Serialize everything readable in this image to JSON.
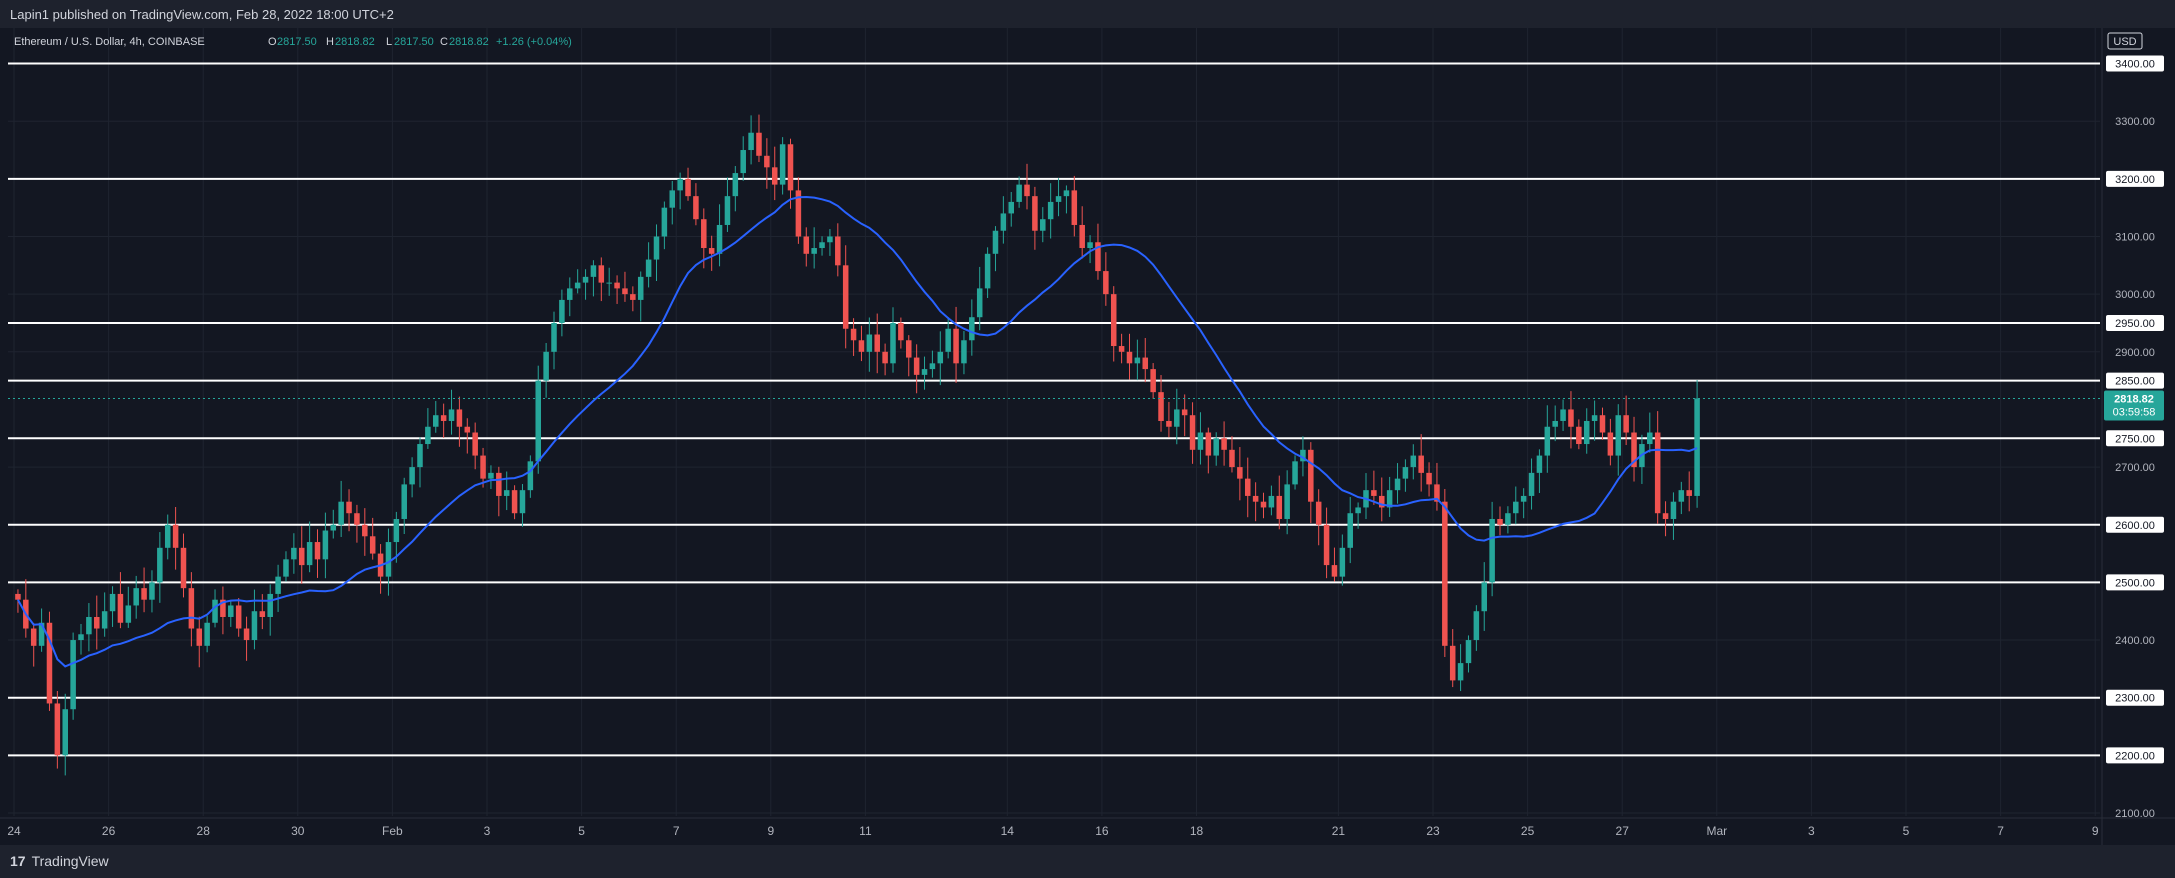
{
  "header": {
    "published": "Lapin1 published on TradingView.com, Feb 28, 2022 18:00 UTC+2"
  },
  "legend": {
    "symbol": "Ethereum / U.S. Dollar, 4h, COINBASE",
    "open_label": "O",
    "open": "2817.50",
    "high_label": "H",
    "high": "2818.82",
    "low_label": "L",
    "low": "2817.50",
    "close_label": "C",
    "close": "2818.82",
    "change": "+1.26 (+0.04%)"
  },
  "footer": {
    "brand": "TradingView",
    "logo_glyph": "17"
  },
  "price_scale": {
    "currency": "USD"
  },
  "last_price": {
    "value": "2818.82",
    "countdown": "03:59:58"
  },
  "colors": {
    "background": "#131722",
    "up": "#26a69a",
    "down": "#ef5350",
    "ma": "#2962ff",
    "level": "#ffffff",
    "grid": "#1f2430",
    "last_price_bg": "#26a69a"
  },
  "chart_data": {
    "type": "candlestick",
    "xlabel": "",
    "ylabel": "",
    "ylim": [
      2050,
      3400
    ],
    "grid": true,
    "y_ticks": [
      2100,
      2200,
      2300,
      2400,
      2500,
      2600,
      2700,
      2750,
      2850,
      2900,
      2950,
      3000,
      3100,
      3200,
      3300
    ],
    "y_tick_labels": [
      "2100.00",
      "2200.00",
      "2300.00",
      "2400.00",
      "2500.00",
      "2600.00",
      "2700.00",
      "2750.00",
      "2850.00",
      "2900.00",
      "2950.00",
      "3000.00",
      "3100.00",
      "3200.00",
      "3300.00"
    ],
    "x_ticks": [
      {
        "label": "24",
        "day": 0
      },
      {
        "label": "26",
        "day": 2
      },
      {
        "label": "28",
        "day": 4
      },
      {
        "label": "30",
        "day": 6
      },
      {
        "label": "Feb",
        "day": 8
      },
      {
        "label": "3",
        "day": 10
      },
      {
        "label": "5",
        "day": 12
      },
      {
        "label": "7",
        "day": 14
      },
      {
        "label": "9",
        "day": 16
      },
      {
        "label": "11",
        "day": 18
      },
      {
        "label": "14",
        "day": 21
      },
      {
        "label": "16",
        "day": 23
      },
      {
        "label": "18",
        "day": 25
      },
      {
        "label": "21",
        "day": 28
      },
      {
        "label": "23",
        "day": 30
      },
      {
        "label": "25",
        "day": 32
      },
      {
        "label": "27",
        "day": 34
      },
      {
        "label": "Mar",
        "day": 36
      },
      {
        "label": "3",
        "day": 38
      },
      {
        "label": "5",
        "day": 40
      },
      {
        "label": "7",
        "day": 42
      },
      {
        "label": "9",
        "day": 44
      }
    ],
    "horizontal_levels": [
      3400,
      3200,
      2950,
      2850,
      2750,
      2600,
      2500,
      2300,
      2200
    ],
    "horizontal_level_labels": [
      "3400.00",
      "3200.00",
      "2950.00",
      "2850.00",
      "2750.00",
      "2600.00",
      "2500.00",
      "2300.00",
      "2200.00"
    ],
    "candles_per_day": 6,
    "first_candle_day": 0,
    "series": [
      {
        "type": "candles",
        "close": [
          2470,
          2420,
          2390,
          2430,
          2290,
          2200,
          2280,
          2400,
          2410,
          2440,
          2420,
          2450,
          2480,
          2430,
          2460,
          2490,
          2470,
          2500,
          2560,
          2600,
          2560,
          2490,
          2420,
          2390,
          2430,
          2470,
          2440,
          2460,
          2420,
          2400,
          2450,
          2440,
          2480,
          2510,
          2540,
          2560,
          2530,
          2570,
          2540,
          2590,
          2600,
          2640,
          2620,
          2600,
          2580,
          2550,
          2510,
          2570,
          2610,
          2670,
          2700,
          2740,
          2770,
          2790,
          2780,
          2800,
          2770,
          2760,
          2720,
          2680,
          2690,
          2650,
          2660,
          2620,
          2660,
          2710,
          2850,
          2900,
          2950,
          2990,
          3010,
          3020,
          3030,
          3050,
          3020,
          3020,
          3010,
          3000,
          2990,
          3030,
          3060,
          3100,
          3150,
          3180,
          3200,
          3170,
          3130,
          3080,
          3070,
          3120,
          3170,
          3210,
          3250,
          3280,
          3240,
          3220,
          3190,
          3260,
          3180,
          3100,
          3070,
          3080,
          3090,
          3100,
          3050,
          2940,
          2920,
          2900,
          2930,
          2900,
          2880,
          2950,
          2920,
          2890,
          2860,
          2870,
          2880,
          2900,
          2940,
          2880,
          2920,
          2960,
          3010,
          3070,
          3110,
          3140,
          3160,
          3190,
          3170,
          3110,
          3130,
          3160,
          3170,
          3180,
          3120,
          3080,
          3090,
          3040,
          3000,
          2910,
          2900,
          2880,
          2890,
          2870,
          2830,
          2780,
          2770,
          2800,
          2790,
          2730,
          2760,
          2720,
          2750,
          2730,
          2700,
          2680,
          2650,
          2640,
          2630,
          2650,
          2610,
          2670,
          2710,
          2730,
          2640,
          2600,
          2530,
          2510,
          2560,
          2620,
          2630,
          2660,
          2650,
          2630,
          2660,
          2680,
          2700,
          2720,
          2690,
          2670,
          2640,
          2390,
          2330,
          2360,
          2400,
          2450,
          2500,
          2610,
          2600,
          2620,
          2640,
          2650,
          2690,
          2720,
          2770,
          2780,
          2800,
          2770,
          2740,
          2780,
          2790,
          2760,
          2720,
          2790,
          2760,
          2700,
          2740,
          2760,
          2620,
          2610,
          2640,
          2660,
          2650,
          2819
        ]
      }
    ]
  }
}
